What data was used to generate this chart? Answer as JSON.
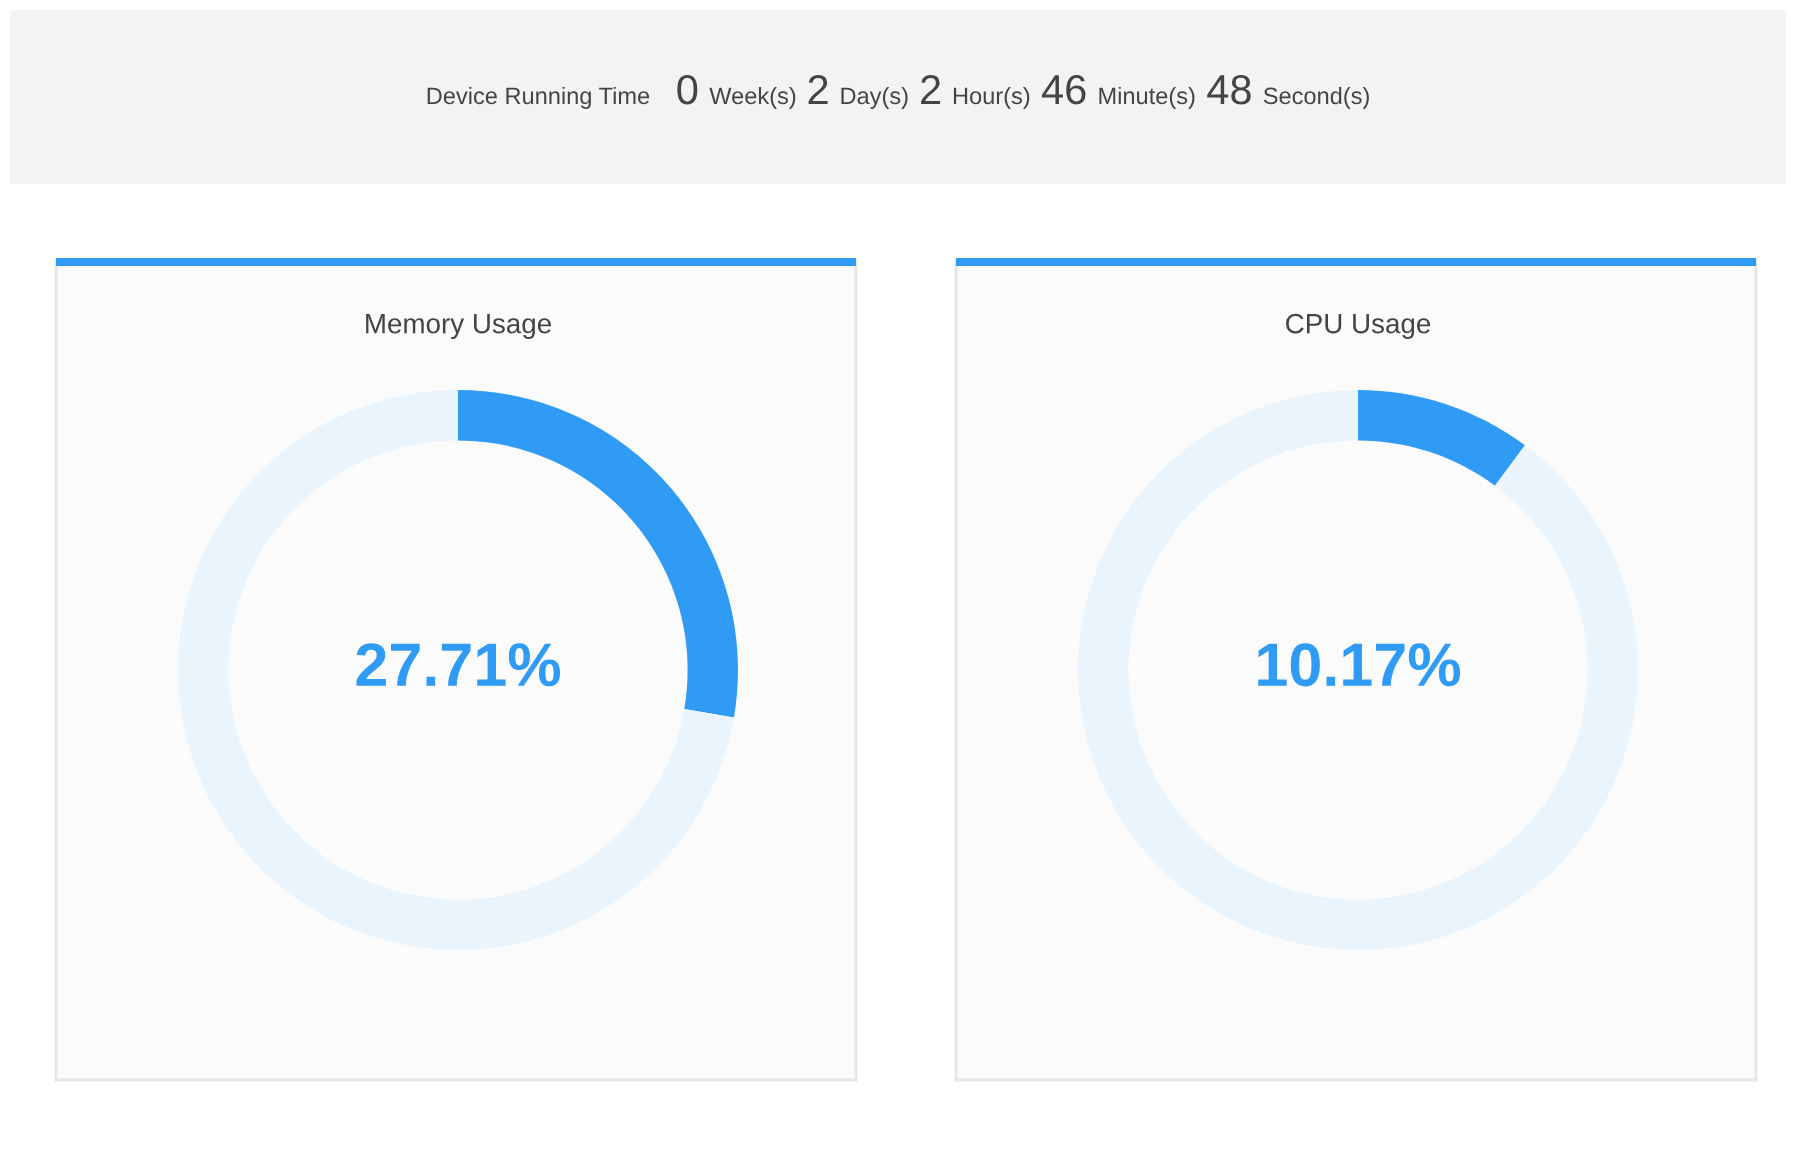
{
  "chart_data": [
    {
      "type": "other",
      "title": "Device Running Time",
      "annotations": [
        "0",
        "Week(s)",
        "2",
        "Day(s)",
        "2",
        "Hour(s)",
        "46",
        "Minute(s)",
        "48",
        "Second(s)"
      ]
    },
    {
      "type": "donut",
      "title": "Memory Usage",
      "categories": [
        null,
        null
      ],
      "values": [
        27.71,
        72.29
      ],
      "colors": [
        "#2f9bf5",
        "#eaf4fd"
      ],
      "annotations": [
        "27.71%"
      ]
    },
    {
      "type": "donut",
      "title": "CPU Usage",
      "categories": [
        null,
        null
      ],
      "values": [
        10.17,
        89.83
      ],
      "colors": [
        "#2f9bf5",
        "#eaf4fd"
      ],
      "annotations": [
        "10.17%"
      ]
    }
  ]
}
